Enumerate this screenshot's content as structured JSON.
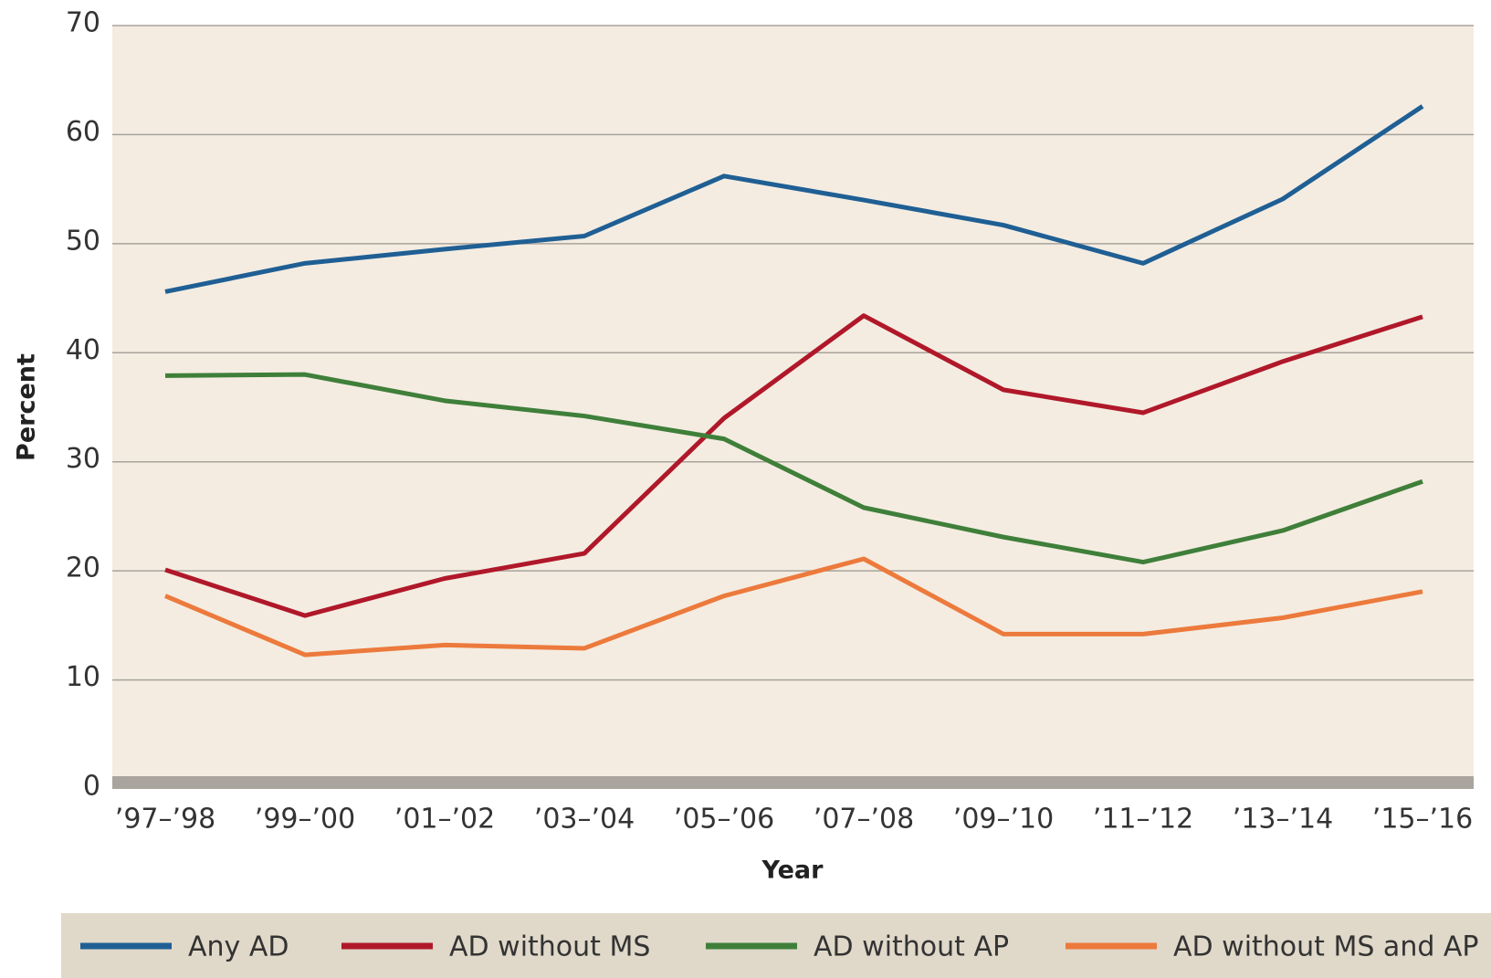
{
  "chart_data": {
    "type": "line",
    "x_label": "Year",
    "y_label": "Percent",
    "categories": [
      "’97–’98",
      "’99–’00",
      "’01–’02",
      "’03–’04",
      "’05–’06",
      "’07–’08",
      "’09–’10",
      "’11–’12",
      "’13–’14",
      "’15–’16"
    ],
    "series": [
      {
        "name": "Any AD",
        "color": "#1f5f94",
        "values": [
          45.6,
          48.2,
          49.5,
          50.7,
          56.2,
          54.0,
          51.7,
          48.2,
          54.1,
          62.6
        ]
      },
      {
        "name": "AD without MS",
        "color": "#b0182a",
        "values": [
          20.1,
          15.9,
          19.3,
          21.6,
          34.0,
          43.4,
          36.6,
          34.5,
          39.2,
          43.3
        ]
      },
      {
        "name": "AD without AP",
        "color": "#3f7f3a",
        "values": [
          37.9,
          38.0,
          35.6,
          34.2,
          32.1,
          25.8,
          23.1,
          20.8,
          23.7,
          28.2
        ]
      },
      {
        "name": "AD without MS and AP",
        "color": "#ec7a3c",
        "values": [
          17.7,
          12.3,
          13.2,
          12.9,
          17.7,
          21.1,
          14.2,
          14.2,
          15.7,
          18.1
        ]
      }
    ],
    "ylim": [
      0,
      70
    ],
    "yticks": [
      0,
      10,
      20,
      30,
      40,
      50,
      60,
      70
    ],
    "grid": true
  }
}
